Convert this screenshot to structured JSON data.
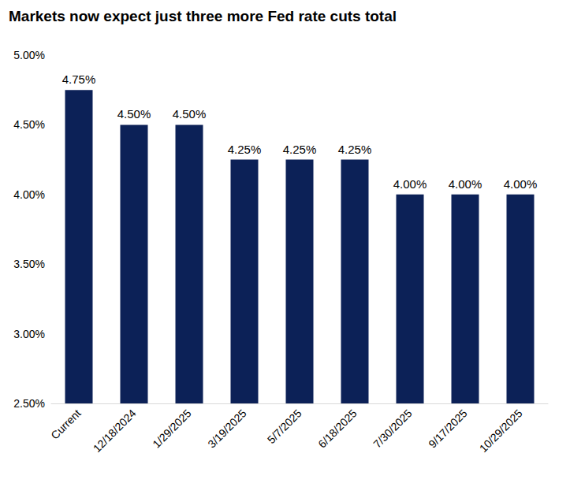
{
  "chart_data": {
    "type": "bar",
    "title": "Markets now expect just three more Fed rate cuts total",
    "categories": [
      "Current",
      "12/18/2024",
      "1/29/2025",
      "3/19/2025",
      "5/7/2025",
      "6/18/2025",
      "7/30/2025",
      "9/17/2025",
      "10/29/2025"
    ],
    "values": [
      4.75,
      4.5,
      4.5,
      4.25,
      4.25,
      4.25,
      4.0,
      4.0,
      4.0
    ],
    "value_labels": [
      "4.75%",
      "4.50%",
      "4.50%",
      "4.25%",
      "4.25%",
      "4.25%",
      "4.00%",
      "4.00%",
      "4.00%"
    ],
    "color": "#0c2157",
    "ylim": [
      2.5,
      5.0
    ],
    "yticks": [
      {
        "value": 2.5,
        "label": "2.50%"
      },
      {
        "value": 3.0,
        "label": "3.00%"
      },
      {
        "value": 3.5,
        "label": "3.50%"
      },
      {
        "value": 4.0,
        "label": "4.00%"
      },
      {
        "value": 4.5,
        "label": "4.50%"
      },
      {
        "value": 5.0,
        "label": "5.00%"
      }
    ],
    "grid": false,
    "data_labels": true
  }
}
